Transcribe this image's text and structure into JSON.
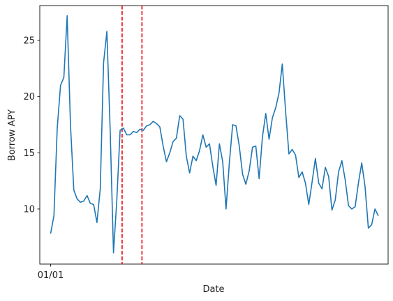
{
  "chart_data": {
    "type": "line",
    "xlabel": "Date",
    "ylabel": "Borrow APY",
    "x_ticks": [
      {
        "x": 0,
        "label": "01/01"
      }
    ],
    "y_ticks": [
      10,
      15,
      20,
      25
    ],
    "xlim": [
      -2.5,
      81
    ],
    "ylim": [
      5.1,
      28.1
    ],
    "grid": false,
    "series": [
      {
        "color": "#1f77b4",
        "x": [
          0,
          1,
          2,
          3,
          4,
          5,
          6,
          7,
          8,
          9,
          10,
          11,
          12,
          13,
          14,
          15,
          16,
          17,
          18,
          19,
          20,
          21,
          22,
          23,
          24,
          25,
          26,
          27,
          28,
          29,
          30,
          31,
          32,
          33,
          34,
          35,
          36,
          37,
          38,
          39,
          40,
          41,
          42,
          43,
          44,
          45,
          46,
          47,
          48,
          49,
          50,
          51,
          52,
          53,
          54,
          55,
          56,
          57,
          58,
          59,
          60,
          61,
          62,
          63,
          64,
          65,
          66,
          67,
          68,
          69,
          70,
          71,
          72,
          73,
          74,
          75,
          76,
          77,
          78,
          79
        ],
        "values": [
          7.8,
          9.4,
          17.2,
          21.0,
          21.7,
          27.2,
          17.5,
          11.7,
          10.9,
          10.6,
          10.7,
          11.2,
          10.5,
          10.4,
          8.8,
          11.8,
          23.0,
          25.8,
          17.0,
          6.1,
          10.8,
          17.0,
          17.2,
          16.6,
          16.6,
          16.9,
          16.8,
          17.1,
          17.0,
          17.4,
          17.5,
          17.8,
          17.6,
          17.3,
          15.6,
          14.2,
          15.0,
          16.0,
          16.3,
          18.3,
          18.0,
          14.7,
          13.2,
          14.7,
          14.3,
          15.2,
          16.6,
          15.5,
          15.8,
          13.8,
          12.1,
          15.8,
          14.2,
          10.0,
          14.1,
          17.5,
          17.4,
          15.6,
          13.1,
          12.2,
          13.4,
          15.5,
          15.6,
          12.7,
          16.4,
          18.5,
          16.2,
          18.1,
          19.0,
          20.3,
          22.9,
          18.7,
          14.9,
          15.3,
          14.8,
          12.8,
          13.3,
          12.3,
          10.4,
          12.4
        ],
        "values_tail": [
          14.5,
          12.3,
          11.8,
          13.7,
          12.9,
          9.9,
          10.8,
          13.3,
          14.3,
          12.6,
          10.3,
          10.0,
          10.2,
          12.3,
          14.1,
          12.0,
          8.3,
          8.6,
          10.0,
          9.4
        ],
        "x_tail": [
          80,
          81,
          82,
          83,
          84,
          85,
          86,
          87,
          88,
          89,
          90,
          91,
          92,
          93,
          94,
          95,
          96,
          97,
          98,
          99
        ]
      }
    ],
    "vlines": [
      {
        "x": 21.6,
        "color": "#e8000b",
        "style": "dashed"
      },
      {
        "x": 27.6,
        "color": "#e8000b",
        "style": "dashed"
      }
    ]
  }
}
